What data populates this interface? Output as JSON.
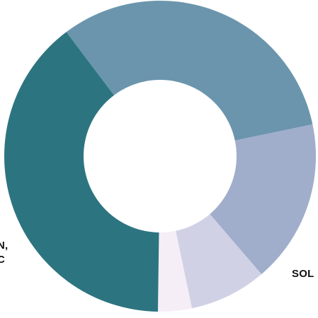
{
  "chart_data": {
    "type": "pie",
    "style": "donut",
    "title": "",
    "slices": [
      {
        "label": "",
        "value": 32,
        "color": "#6b95ad"
      },
      {
        "label": "",
        "value": 17,
        "color": "#a0aecc"
      },
      {
        "label": "",
        "value": 8,
        "color": "#d1d1e6"
      },
      {
        "label": "",
        "value": 3.5,
        "color": "#f5eef6"
      },
      {
        "label": "",
        "value": 39.5,
        "color": "#2c7580"
      }
    ],
    "visible_labels": {
      "left_line_1": "N,",
      "left_line_2": "C",
      "bottom_right": "SOL"
    }
  }
}
